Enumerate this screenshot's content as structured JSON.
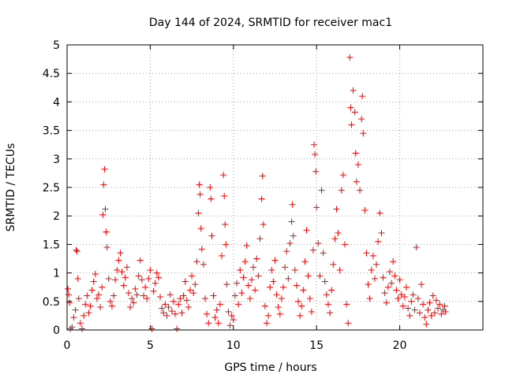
{
  "chart_data": {
    "type": "scatter",
    "title": "Day 144 of 2024, SRMTID for receiver mac1",
    "xlabel": "GPS time / hours",
    "ylabel": "SRMTID / TECUs",
    "xlim": [
      0,
      25
    ],
    "ylim": [
      0,
      5
    ],
    "grid": true,
    "marker": "+",
    "x_ticks": [
      0,
      5,
      10,
      15,
      20
    ],
    "x_tick_labels": [
      "0",
      "5",
      "10",
      "15",
      "20"
    ],
    "y_ticks": [
      0,
      0.5,
      1,
      1.5,
      2,
      2.5,
      3,
      3.5,
      4,
      4.5,
      5
    ],
    "y_tick_labels": [
      "0",
      "0.5",
      "1",
      "1.5",
      "2",
      "2.5",
      "3",
      "3.5",
      "4",
      "4.5",
      "5"
    ],
    "series_color": "#ff0000",
    "series": [
      {
        "name": "SRMTID",
        "points": [
          [
            0.05,
            0.72
          ],
          [
            0.1,
            0.62
          ],
          [
            0.15,
            0.48
          ],
          [
            0.2,
            0.02
          ],
          [
            0.3,
            0.05
          ],
          [
            0.4,
            0.22
          ],
          [
            0.5,
            0.35
          ],
          [
            0.55,
            1.4
          ],
          [
            0.6,
            1.38
          ],
          [
            0.65,
            0.9
          ],
          [
            0.7,
            0.55
          ],
          [
            0.8,
            0.12
          ],
          [
            0.9,
            0.02
          ],
          [
            1.0,
            0.25
          ],
          [
            1.1,
            0.45
          ],
          [
            1.2,
            0.6
          ],
          [
            1.3,
            0.3
          ],
          [
            1.4,
            0.42
          ],
          [
            1.5,
            0.7
          ],
          [
            1.6,
            0.85
          ],
          [
            1.7,
            0.98
          ],
          [
            1.8,
            0.55
          ],
          [
            1.9,
            0.62
          ],
          [
            2.0,
            0.4
          ],
          [
            2.1,
            0.75
          ],
          [
            2.15,
            2.02
          ],
          [
            2.2,
            2.55
          ],
          [
            2.25,
            2.82
          ],
          [
            2.3,
            2.12
          ],
          [
            2.35,
            1.72
          ],
          [
            2.4,
            1.45
          ],
          [
            2.5,
            0.9
          ],
          [
            2.6,
            0.5
          ],
          [
            2.7,
            0.42
          ],
          [
            2.8,
            0.6
          ],
          [
            2.9,
            0.88
          ],
          [
            3.0,
            1.05
          ],
          [
            3.1,
            1.22
          ],
          [
            3.2,
            1.35
          ],
          [
            3.3,
            1.02
          ],
          [
            3.4,
            0.78
          ],
          [
            3.5,
            0.92
          ],
          [
            3.6,
            1.1
          ],
          [
            3.7,
            0.65
          ],
          [
            3.8,
            0.4
          ],
          [
            3.9,
            0.55
          ],
          [
            4.0,
            0.48
          ],
          [
            4.1,
            0.72
          ],
          [
            4.2,
            0.62
          ],
          [
            4.3,
            0.95
          ],
          [
            4.4,
            1.22
          ],
          [
            4.5,
            0.88
          ],
          [
            4.6,
            0.6
          ],
          [
            4.7,
            0.75
          ],
          [
            4.8,
            0.55
          ],
          [
            4.9,
            0.9
          ],
          [
            5.0,
            1.05
          ],
          [
            5.1,
            0.02
          ],
          [
            5.2,
            0.68
          ],
          [
            5.3,
            0.82
          ],
          [
            5.4,
            1.0
          ],
          [
            5.5,
            0.92
          ],
          [
            5.6,
            0.58
          ],
          [
            5.7,
            0.38
          ],
          [
            5.8,
            0.3
          ],
          [
            5.9,
            0.45
          ],
          [
            6.0,
            0.25
          ],
          [
            6.1,
            0.4
          ],
          [
            6.2,
            0.62
          ],
          [
            6.3,
            0.33
          ],
          [
            6.4,
            0.5
          ],
          [
            6.5,
            0.28
          ],
          [
            6.6,
            0.02
          ],
          [
            6.7,
            0.45
          ],
          [
            6.8,
            0.55
          ],
          [
            6.9,
            0.3
          ],
          [
            7.0,
            0.6
          ],
          [
            7.1,
            0.85
          ],
          [
            7.2,
            0.52
          ],
          [
            7.3,
            0.4
          ],
          [
            7.4,
            0.7
          ],
          [
            7.5,
            0.95
          ],
          [
            7.6,
            0.65
          ],
          [
            7.7,
            0.8
          ],
          [
            7.8,
            1.2
          ],
          [
            7.9,
            2.05
          ],
          [
            7.95,
            2.55
          ],
          [
            8.0,
            2.38
          ],
          [
            8.05,
            1.78
          ],
          [
            8.1,
            1.42
          ],
          [
            8.2,
            1.15
          ],
          [
            8.3,
            0.55
          ],
          [
            8.4,
            0.28
          ],
          [
            8.5,
            0.12
          ],
          [
            8.6,
            2.5
          ],
          [
            8.65,
            2.3
          ],
          [
            8.7,
            1.65
          ],
          [
            8.8,
            0.6
          ],
          [
            8.9,
            0.22
          ],
          [
            9.0,
            0.35
          ],
          [
            9.1,
            0.12
          ],
          [
            9.2,
            0.45
          ],
          [
            9.3,
            1.3
          ],
          [
            9.4,
            2.72
          ],
          [
            9.45,
            2.35
          ],
          [
            9.5,
            1.85
          ],
          [
            9.55,
            1.5
          ],
          [
            9.6,
            0.8
          ],
          [
            9.7,
            0.32
          ],
          [
            9.8,
            0.08
          ],
          [
            9.9,
            0.25
          ],
          [
            10.0,
            0.18
          ],
          [
            10.1,
            0.6
          ],
          [
            10.2,
            0.82
          ],
          [
            10.3,
            0.45
          ],
          [
            10.4,
            1.05
          ],
          [
            10.5,
            0.65
          ],
          [
            10.6,
            0.92
          ],
          [
            10.7,
            1.2
          ],
          [
            10.8,
            1.48
          ],
          [
            10.9,
            0.78
          ],
          [
            11.0,
            0.55
          ],
          [
            11.1,
            0.88
          ],
          [
            11.2,
            1.1
          ],
          [
            11.3,
            0.7
          ],
          [
            11.4,
            1.25
          ],
          [
            11.5,
            0.95
          ],
          [
            11.6,
            1.6
          ],
          [
            11.7,
            2.3
          ],
          [
            11.75,
            2.7
          ],
          [
            11.8,
            1.85
          ],
          [
            11.9,
            0.42
          ],
          [
            12.0,
            0.12
          ],
          [
            12.1,
            0.25
          ],
          [
            12.2,
            0.75
          ],
          [
            12.3,
            1.05
          ],
          [
            12.4,
            0.85
          ],
          [
            12.5,
            1.22
          ],
          [
            12.6,
            0.62
          ],
          [
            12.7,
            0.4
          ],
          [
            12.8,
            0.28
          ],
          [
            12.9,
            0.55
          ],
          [
            13.0,
            0.75
          ],
          [
            13.1,
            1.1
          ],
          [
            13.2,
            1.38
          ],
          [
            13.3,
            0.9
          ],
          [
            13.4,
            1.52
          ],
          [
            13.5,
            1.9
          ],
          [
            13.55,
            2.2
          ],
          [
            13.6,
            1.65
          ],
          [
            13.7,
            1.05
          ],
          [
            13.8,
            0.78
          ],
          [
            13.9,
            0.5
          ],
          [
            14.0,
            0.25
          ],
          [
            14.1,
            0.42
          ],
          [
            14.2,
            0.7
          ],
          [
            14.3,
            1.2
          ],
          [
            14.4,
            1.75
          ],
          [
            14.5,
            0.95
          ],
          [
            14.6,
            0.55
          ],
          [
            14.7,
            0.32
          ],
          [
            14.8,
            1.4
          ],
          [
            14.85,
            3.25
          ],
          [
            14.9,
            3.08
          ],
          [
            14.95,
            2.78
          ],
          [
            15.0,
            2.15
          ],
          [
            15.1,
            1.52
          ],
          [
            15.2,
            0.95
          ],
          [
            15.3,
            2.45
          ],
          [
            15.4,
            1.35
          ],
          [
            15.5,
            0.85
          ],
          [
            15.6,
            0.62
          ],
          [
            15.7,
            0.45
          ],
          [
            15.8,
            0.3
          ],
          [
            15.9,
            0.7
          ],
          [
            16.0,
            1.15
          ],
          [
            16.1,
            1.6
          ],
          [
            16.2,
            2.12
          ],
          [
            16.3,
            1.7
          ],
          [
            16.4,
            1.05
          ],
          [
            16.5,
            2.45
          ],
          [
            16.6,
            2.72
          ],
          [
            16.7,
            1.5
          ],
          [
            16.8,
            0.45
          ],
          [
            16.9,
            0.12
          ],
          [
            17.0,
            4.78
          ],
          [
            17.05,
            3.9
          ],
          [
            17.1,
            3.6
          ],
          [
            17.2,
            4.2
          ],
          [
            17.3,
            3.82
          ],
          [
            17.35,
            3.1
          ],
          [
            17.4,
            2.6
          ],
          [
            17.5,
            2.9
          ],
          [
            17.6,
            2.45
          ],
          [
            17.7,
            3.7
          ],
          [
            17.75,
            4.1
          ],
          [
            17.8,
            3.45
          ],
          [
            17.9,
            2.1
          ],
          [
            18.0,
            1.35
          ],
          [
            18.1,
            0.8
          ],
          [
            18.2,
            0.55
          ],
          [
            18.3,
            1.05
          ],
          [
            18.4,
            1.3
          ],
          [
            18.5,
            0.9
          ],
          [
            18.6,
            1.15
          ],
          [
            18.7,
            1.55
          ],
          [
            18.8,
            2.05
          ],
          [
            18.9,
            1.7
          ],
          [
            19.0,
            0.92
          ],
          [
            19.1,
            0.65
          ],
          [
            19.2,
            0.48
          ],
          [
            19.3,
            0.75
          ],
          [
            19.4,
            1.02
          ],
          [
            19.5,
            0.82
          ],
          [
            19.6,
            1.2
          ],
          [
            19.7,
            0.95
          ],
          [
            19.8,
            0.7
          ],
          [
            19.9,
            0.55
          ],
          [
            20.0,
            0.88
          ],
          [
            20.1,
            0.62
          ],
          [
            20.2,
            0.42
          ],
          [
            20.3,
            0.58
          ],
          [
            20.4,
            0.75
          ],
          [
            20.5,
            0.38
          ],
          [
            20.6,
            0.25
          ],
          [
            20.7,
            0.5
          ],
          [
            20.8,
            0.62
          ],
          [
            20.9,
            0.35
          ],
          [
            21.0,
            1.45
          ],
          [
            21.1,
            0.55
          ],
          [
            21.2,
            0.3
          ],
          [
            21.3,
            0.8
          ],
          [
            21.4,
            0.45
          ],
          [
            21.5,
            0.22
          ],
          [
            21.6,
            0.1
          ],
          [
            21.7,
            0.35
          ],
          [
            21.8,
            0.48
          ],
          [
            21.9,
            0.25
          ],
          [
            22.0,
            0.6
          ],
          [
            22.1,
            0.3
          ],
          [
            22.2,
            0.52
          ],
          [
            22.3,
            0.38
          ],
          [
            22.4,
            0.45
          ],
          [
            22.5,
            0.28
          ],
          [
            22.6,
            0.35
          ],
          [
            22.7,
            0.42
          ],
          [
            22.75,
            0.32
          ]
        ]
      }
    ]
  }
}
